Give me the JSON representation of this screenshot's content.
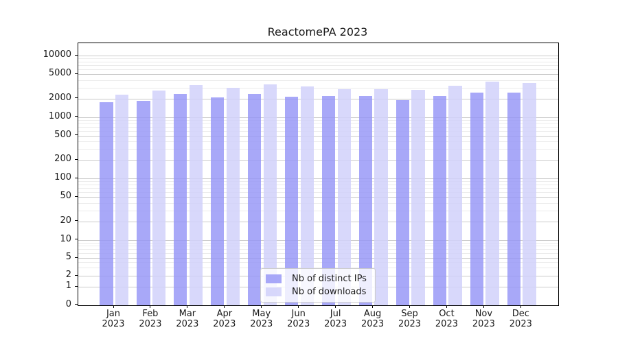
{
  "title": "ReactomePA 2023",
  "legend": {
    "position": "lower center",
    "items": [
      {
        "label": "Nb of distinct IPs",
        "color": "rgba(149,149,247,0.82)"
      },
      {
        "label": "Nb of downloads",
        "color": "rgba(209,209,250,0.85)"
      }
    ]
  },
  "chart_data": {
    "type": "bar",
    "title": "ReactomePA 2023",
    "categories": [
      "Jan 2023",
      "Feb 2023",
      "Mar 2023",
      "Apr 2023",
      "May 2023",
      "Jun 2023",
      "Jul 2023",
      "Aug 2023",
      "Sep 2023",
      "Oct 2023",
      "Nov 2023",
      "Dec 2023"
    ],
    "x_tick_top": [
      "Jan",
      "Feb",
      "Mar",
      "Apr",
      "May",
      "Jun",
      "Jul",
      "Aug",
      "Sep",
      "Oct",
      "Nov",
      "Dec"
    ],
    "x_tick_bottom": "2023",
    "series": [
      {
        "name": "Nb of distinct IPs",
        "color": "rgba(149,149,247,0.82)",
        "values": [
          1750,
          1860,
          2390,
          2100,
          2430,
          2170,
          2230,
          2210,
          1900,
          2230,
          2560,
          2510
        ]
      },
      {
        "name": "Nb of downloads",
        "color": "rgba(209,209,250,0.85)",
        "values": [
          2370,
          2740,
          3340,
          3040,
          3430,
          3150,
          2910,
          2840,
          2810,
          3230,
          3800,
          3610
        ]
      }
    ],
    "y_ticks": [
      0,
      1,
      2,
      5,
      10,
      20,
      50,
      100,
      200,
      500,
      1000,
      2000,
      5000,
      10000
    ],
    "y_minor_ticks": [
      3,
      4,
      6,
      7,
      8,
      9,
      30,
      40,
      60,
      70,
      80,
      90,
      300,
      400,
      600,
      700,
      800,
      900,
      3000,
      4000,
      6000,
      7000,
      8000,
      9000
    ],
    "y_scale": "log (with 0 baseline)",
    "ylim": [
      0,
      16000
    ],
    "grid": true,
    "legend_position": "lower center"
  },
  "colors": {
    "bar_distinct_ips": "rgba(149,149,247,0.82)",
    "bar_downloads": "rgba(209,209,250,0.85)",
    "grid_major": "#c9c9c9",
    "grid_minor": "#ebebeb",
    "spine": "#000000",
    "text": "#1a1a1a"
  }
}
